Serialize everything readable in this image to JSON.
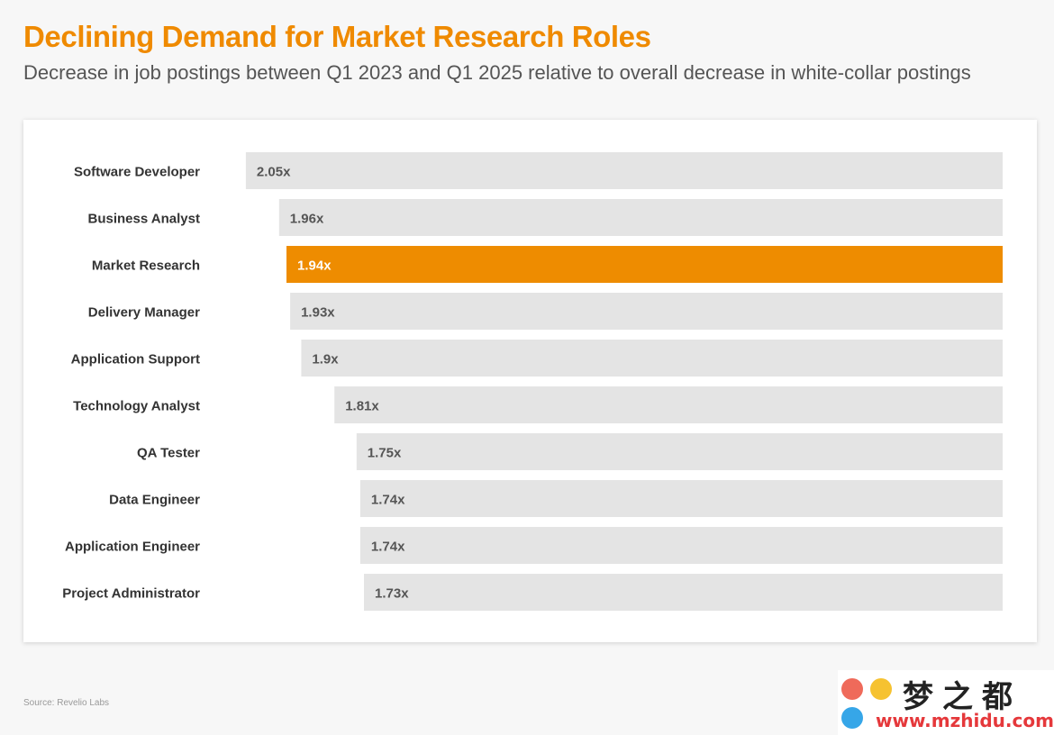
{
  "header": {
    "title": "Declining Demand for Market Research Roles",
    "subtitle": "Decrease in job postings between Q1 2023 and Q1 2025 relative to overall decrease in white-collar postings"
  },
  "chart_data": {
    "type": "bar",
    "orientation": "horizontal",
    "title": "Declining Demand for Market Research Roles",
    "subtitle": "Decrease in job postings between Q1 2023 and Q1 2025 relative to overall decrease in white-collar postings",
    "categories": [
      "Software Developer",
      "Business Analyst",
      "Market Research",
      "Delivery Manager",
      "Application Support",
      "Technology Analyst",
      "QA Tester",
      "Data Engineer",
      "Application Engineer",
      "Project Administrator"
    ],
    "values": [
      2.05,
      1.96,
      1.94,
      1.93,
      1.9,
      1.81,
      1.75,
      1.74,
      1.74,
      1.73
    ],
    "labels": [
      "2.05x",
      "1.96x",
      "1.94x",
      "1.93x",
      "1.9x",
      "1.81x",
      "1.75x",
      "1.74x",
      "1.74x",
      "1.73x"
    ],
    "highlight": "Market Research",
    "xlim": [
      0,
      2.65
    ],
    "bar_anchor": "right",
    "xlabel": "",
    "ylabel": "",
    "grid": false,
    "colors": {
      "default_bar": "#e4e4e4",
      "highlight_bar": "#ee8c00",
      "default_label": "#555555",
      "highlight_label": "#ffffff",
      "category_label": "#333333"
    }
  },
  "footer": {
    "source": "Source: Revelio Labs"
  },
  "watermark": {
    "cn": "梦之都",
    "url": "www.mzhidu.com"
  }
}
